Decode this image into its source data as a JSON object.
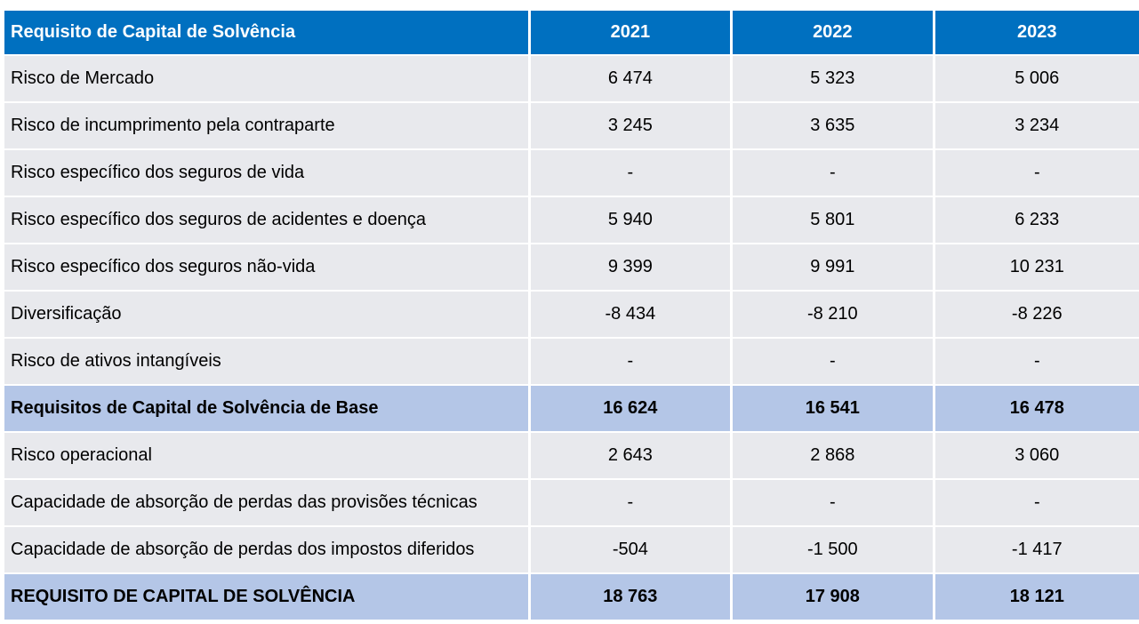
{
  "table": {
    "header": {
      "label": "Requisito de Capital de Solvência",
      "years": [
        "2021",
        "2022",
        "2023"
      ]
    },
    "rows": [
      {
        "label": "Risco de Mercado",
        "values": [
          "6 474",
          "5 323",
          "5 006"
        ],
        "total": false
      },
      {
        "label": "Risco de incumprimento pela contraparte",
        "values": [
          "3 245",
          "3 635",
          "3 234"
        ],
        "total": false
      },
      {
        "label": "Risco específico dos seguros de vida",
        "values": [
          "-",
          "-",
          "-"
        ],
        "total": false
      },
      {
        "label": "Risco específico dos seguros de acidentes e doença",
        "values": [
          "5 940",
          "5 801",
          "6 233"
        ],
        "total": false
      },
      {
        "label": "Risco específico dos seguros não-vida",
        "values": [
          "9 399",
          "9 991",
          "10 231"
        ],
        "total": false
      },
      {
        "label": "Diversificação",
        "values": [
          "-8 434",
          "-8 210",
          "-8 226"
        ],
        "total": false
      },
      {
        "label": "Risco de ativos intangíveis",
        "values": [
          "-",
          "-",
          "-"
        ],
        "total": false
      },
      {
        "label": "Requisitos de Capital de Solvência de Base",
        "values": [
          "16 624",
          "16 541",
          "16 478"
        ],
        "total": true
      },
      {
        "label": "Risco operacional",
        "values": [
          "2 643",
          "2 868",
          "3 060"
        ],
        "total": false
      },
      {
        "label": "Capacidade de absorção de perdas das provisões técnicas",
        "values": [
          "-",
          "-",
          "-"
        ],
        "total": false
      },
      {
        "label": "Capacidade de absorção de perdas dos impostos diferidos",
        "values": [
          "-504",
          "-1 500",
          "-1 417"
        ],
        "total": false
      },
      {
        "label": "REQUISITO DE CAPITAL DE SOLVÊNCIA",
        "values": [
          "18 763",
          "17 908",
          "18 121"
        ],
        "total": true
      }
    ]
  },
  "colors": {
    "header_bg": "#0070c0",
    "row_bg": "#e8e9ed",
    "total_bg": "#b4c6e7"
  }
}
